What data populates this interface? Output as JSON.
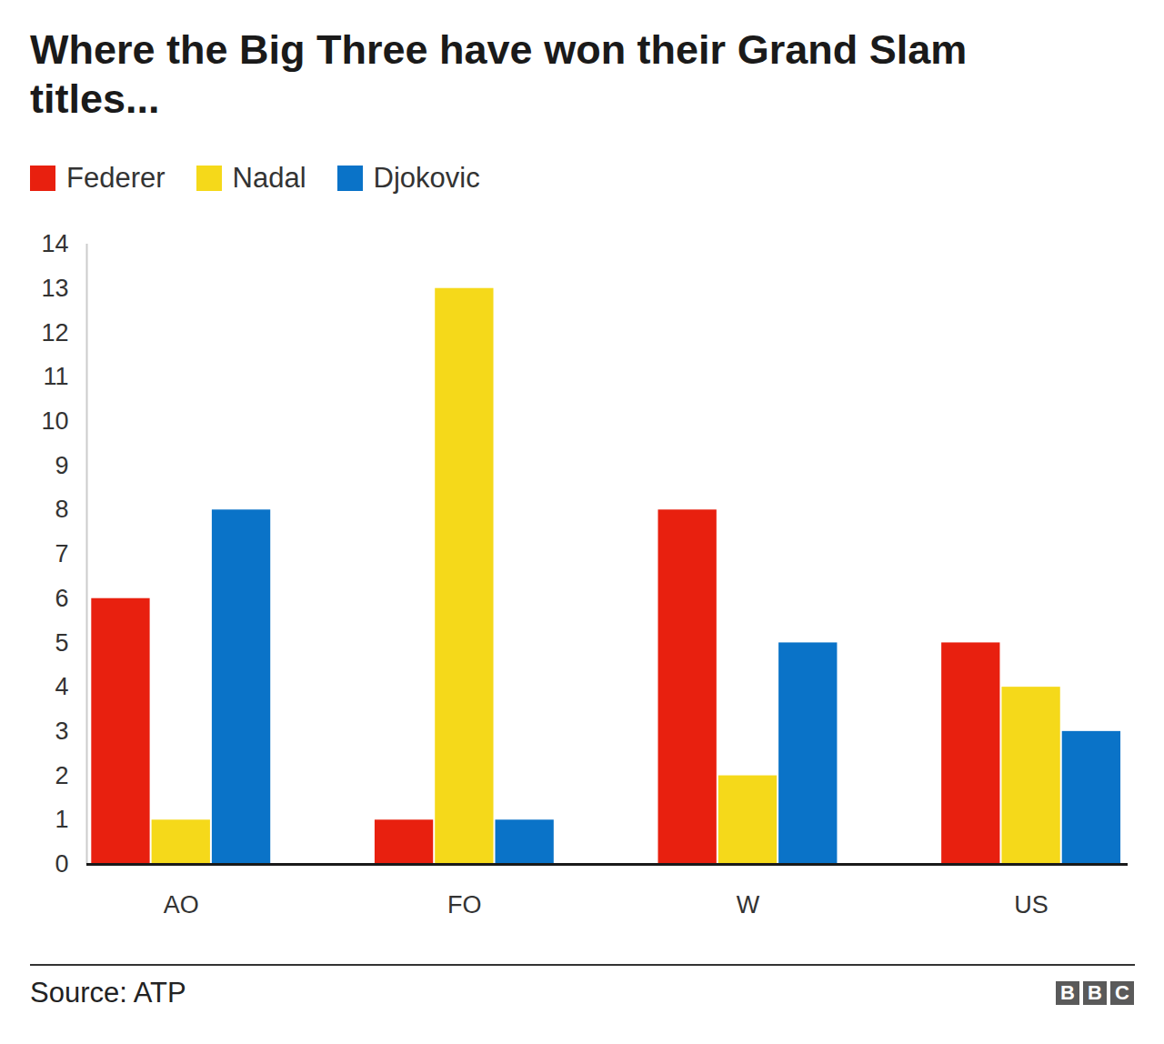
{
  "chart_data": {
    "type": "bar",
    "title": "Where the Big Three have won their Grand Slam titles...",
    "categories": [
      "AO",
      "FO",
      "W",
      "US"
    ],
    "series": [
      {
        "name": "Federer",
        "color": "#e8200f",
        "values": [
          6,
          1,
          8,
          5
        ]
      },
      {
        "name": "Nadal",
        "color": "#f5d91a",
        "values": [
          1,
          13,
          2,
          4
        ]
      },
      {
        "name": "Djokovic",
        "color": "#0a73c8",
        "values": [
          8,
          1,
          5,
          3
        ]
      }
    ],
    "ylim": [
      0,
      14
    ],
    "yticks": [
      0,
      1,
      2,
      3,
      4,
      5,
      6,
      7,
      8,
      9,
      10,
      11,
      12,
      13,
      14
    ],
    "grid": false,
    "legend": "top-left",
    "source": "Source: ATP",
    "logo": "BBC"
  }
}
